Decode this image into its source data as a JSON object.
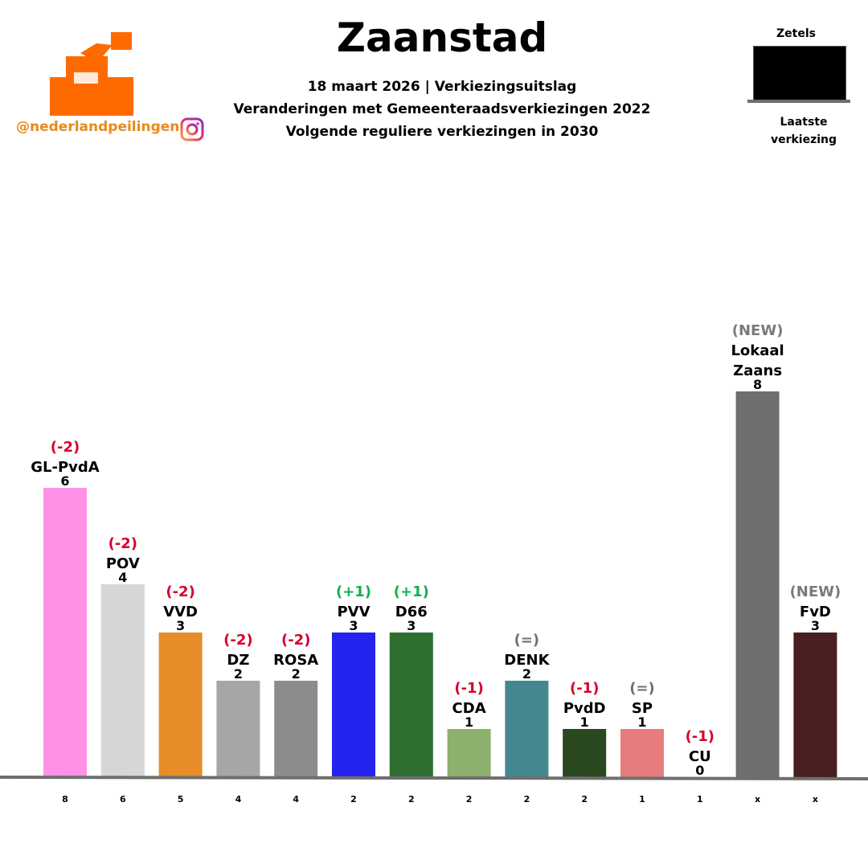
{
  "header": {
    "title": "Zaanstad",
    "line1": "18 maart 2026 | Verkiezingsuitslag",
    "line2": "Veranderingen met Gemeenteraadsverkiezingen 2022",
    "line3": "Volgende reguliere verkiezingen in 2030",
    "handle": "@nederlandpeilingen"
  },
  "legend": {
    "top_label": "Zetels",
    "bottom_label_1": "Laatste",
    "bottom_label_2": "verkiezing"
  },
  "colors": {
    "change_down": "#d6002a",
    "change_up": "#10b050",
    "change_neutral": "#707070",
    "new": "#7a7a7a",
    "logo": "#ff6a00"
  },
  "chart_data": {
    "type": "bar",
    "ylim": [
      0,
      8
    ],
    "series": [
      {
        "party": "GL-PvdA",
        "seats": 6,
        "change": "(-2)",
        "previous": "8",
        "color": "#ff91e6",
        "label_lines": [
          "GL-PvdA"
        ]
      },
      {
        "party": "POV",
        "seats": 4,
        "change": "(-2)",
        "previous": "6",
        "color": "#d6d6d6",
        "label_lines": [
          "POV"
        ]
      },
      {
        "party": "VVD",
        "seats": 3,
        "change": "(-2)",
        "previous": "5",
        "color": "#e88c2a",
        "label_lines": [
          "VVD"
        ]
      },
      {
        "party": "DZ",
        "seats": 2,
        "change": "(-2)",
        "previous": "4",
        "color": "#a6a6a6",
        "label_lines": [
          "DZ"
        ]
      },
      {
        "party": "ROSA",
        "seats": 2,
        "change": "(-2)",
        "previous": "4",
        "color": "#8c8c8c",
        "label_lines": [
          "ROSA"
        ]
      },
      {
        "party": "PVV",
        "seats": 3,
        "change": "(+1)",
        "previous": "2",
        "color": "#2424ee",
        "label_lines": [
          "PVV"
        ]
      },
      {
        "party": "D66",
        "seats": 3,
        "change": "(+1)",
        "previous": "2",
        "color": "#2e6e2e",
        "label_lines": [
          "D66"
        ]
      },
      {
        "party": "CDA",
        "seats": 1,
        "change": "(-1)",
        "previous": "2",
        "color": "#8db06c",
        "label_lines": [
          "CDA"
        ]
      },
      {
        "party": "DENK",
        "seats": 2,
        "change": "(=)",
        "previous": "2",
        "color": "#44878f",
        "label_lines": [
          "DENK"
        ]
      },
      {
        "party": "PvdD",
        "seats": 1,
        "change": "(-1)",
        "previous": "2",
        "color": "#29481f",
        "label_lines": [
          "PvdD"
        ]
      },
      {
        "party": "SP",
        "seats": 1,
        "change": "(=)",
        "previous": "1",
        "color": "#e77c7c",
        "label_lines": [
          "SP"
        ]
      },
      {
        "party": "CU",
        "seats": 0,
        "change": "(-1)",
        "previous": "1",
        "color": "#2a6bd1",
        "label_lines": [
          "CU"
        ]
      },
      {
        "party": "Lokaal Zaans",
        "seats": 8,
        "change": "(NEW)",
        "previous": "x",
        "color": "#6e6e6e",
        "label_lines": [
          "Lokaal",
          "Zaans"
        ]
      },
      {
        "party": "FvD",
        "seats": 3,
        "change": "(NEW)",
        "previous": "x",
        "color": "#4a1f1f",
        "label_lines": [
          "FvD"
        ]
      }
    ]
  }
}
